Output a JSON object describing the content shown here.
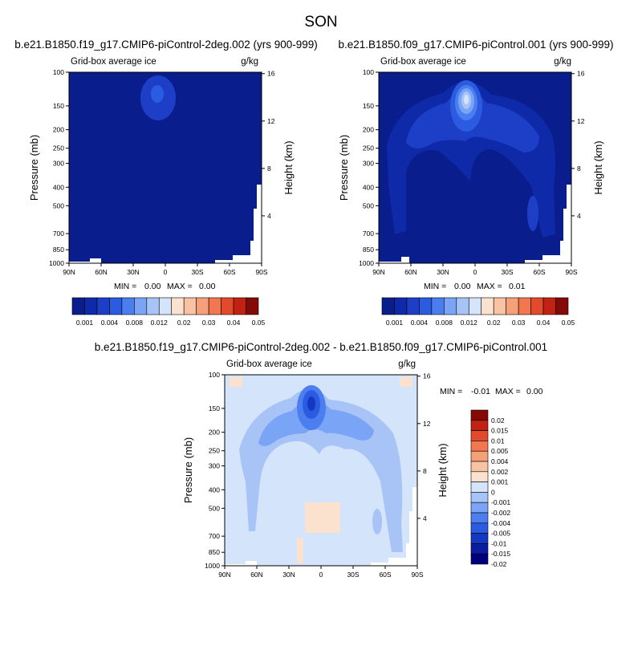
{
  "figure_title": "SON",
  "colors": {
    "abs_levels": [
      "#0a1d8c",
      "#0f2aa8",
      "#1d3fc7",
      "#2b5be0",
      "#4a7ef0",
      "#7aa4f5",
      "#a8c4f7",
      "#d3e4fb",
      "#fbe2cf",
      "#f9c2a2",
      "#f6a07a",
      "#f2774f",
      "#e34a2c",
      "#c22213",
      "#850a05"
    ],
    "diff_levels": [
      "#00007f",
      "#0a1d9e",
      "#1438c2",
      "#2b5be0",
      "#4c7ef0",
      "#7aa4f5",
      "#a8c4f7",
      "#d3e4fb",
      "#fbe2cf",
      "#f9c2a2",
      "#f6a07a",
      "#f2774f",
      "#e34a2c",
      "#c22213",
      "#850a05"
    ]
  },
  "chart_data": [
    {
      "type": "heatmap",
      "title": "b.e21.B1850.f19_g17.CMIP6-piControl-2deg.002 (yrs 900-999)",
      "subtitle_left": "Grid-box average ice",
      "subtitle_right": "g/kg",
      "x_ticks": [
        "90N",
        "60N",
        "30N",
        "0",
        "30S",
        "60S",
        "90S"
      ],
      "y_ticks": [
        "100",
        "150",
        "200",
        "250",
        "300",
        "400",
        "500",
        "700",
        "850",
        "1000"
      ],
      "y2_ticks": [
        "16",
        "12",
        "8",
        "4"
      ],
      "ylabel": "Pressure (mb)",
      "y2label": "Height (km)",
      "min_label": "MIN =",
      "min_value": "0.00",
      "max_label": "MAX =",
      "max_value": "0.00",
      "colorbar_labels": [
        "0.001",
        "0.004",
        "0.008",
        "0.012",
        "0.02",
        "0.03",
        "0.04",
        "0.05"
      ]
    },
    {
      "type": "heatmap",
      "title": "b.e21.B1850.f09_g17.CMIP6-piControl.001 (yrs 900-999)",
      "subtitle_left": "Grid-box average ice",
      "subtitle_right": "g/kg",
      "x_ticks": [
        "90N",
        "60N",
        "30N",
        "0",
        "30S",
        "60S",
        "90S"
      ],
      "y_ticks": [
        "100",
        "150",
        "200",
        "250",
        "300",
        "400",
        "500",
        "700",
        "850",
        "1000"
      ],
      "y2_ticks": [
        "16",
        "12",
        "8",
        "4"
      ],
      "ylabel": "Pressure (mb)",
      "y2label": "Height (km)",
      "min_label": "MIN =",
      "min_value": "0.00",
      "max_label": "MAX =",
      "max_value": "0.01",
      "colorbar_labels": [
        "0.001",
        "0.004",
        "0.008",
        "0.012",
        "0.02",
        "0.03",
        "0.04",
        "0.05"
      ]
    },
    {
      "type": "heatmap",
      "title": "b.e21.B1850.f19_g17.CMIP6-piControl-2deg.002 - b.e21.B1850.f09_g17.CMIP6-piControl.001",
      "subtitle_left": "Grid-box average ice",
      "subtitle_right": "g/kg",
      "x_ticks": [
        "90N",
        "60N",
        "30N",
        "0",
        "30S",
        "60S",
        "90S"
      ],
      "y_ticks": [
        "100",
        "150",
        "200",
        "250",
        "300",
        "400",
        "500",
        "700",
        "850",
        "1000"
      ],
      "y2_ticks": [
        "16",
        "12",
        "8",
        "4"
      ],
      "ylabel": "Pressure (mb)",
      "y2label": "Height (km)",
      "min_label": "MIN =",
      "min_value": "-0.01",
      "max_label": "MAX =",
      "max_value": "0.00",
      "colorbar_labels": [
        "0.02",
        "0.015",
        "0.01",
        "0.005",
        "0.004",
        "0.002",
        "0.001",
        "0",
        "-0.001",
        "-0.002",
        "-0.004",
        "-0.005",
        "-0.01",
        "-0.015",
        "-0.02"
      ]
    }
  ]
}
